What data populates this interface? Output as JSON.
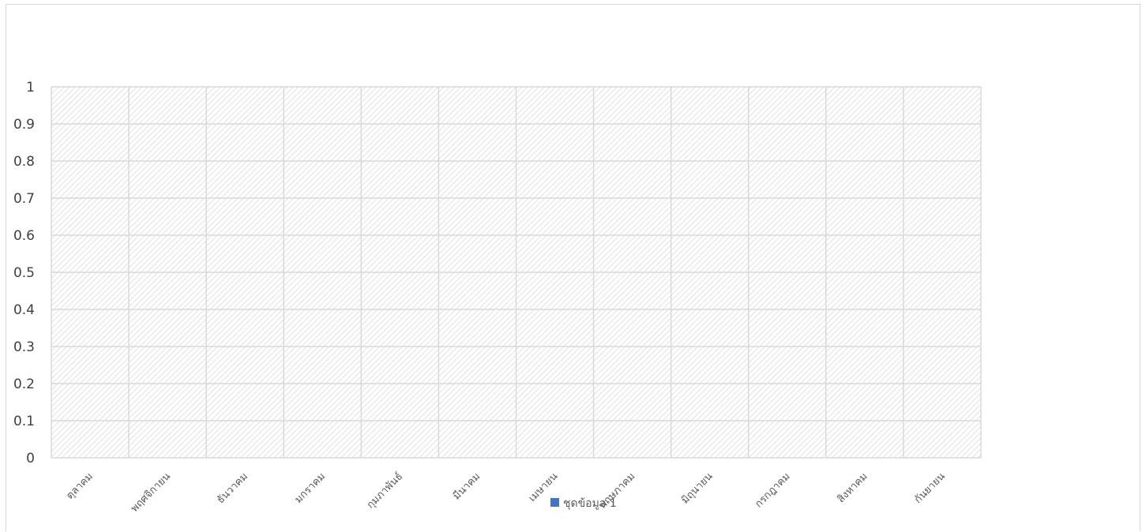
{
  "chart_data": {
    "type": "bar",
    "categories": [
      "ตุลาคม",
      "พฤศจิกายน",
      "ธันวาคม",
      "มกราคม",
      "กุมภาพันธ์",
      "มีนาคม",
      "เมษายน",
      "พฤษภาคม",
      "มิถุนายน",
      "กรกฎาคม",
      "สิงหาคม",
      "กันยายน"
    ],
    "series": [
      {
        "name": "ชุดข้อมูล 1",
        "values": [
          null,
          null,
          null,
          null,
          null,
          null,
          null,
          null,
          null,
          null,
          null,
          null
        ],
        "color": "#4472c4"
      }
    ],
    "ylim": [
      0,
      1
    ],
    "yticks": [
      "0",
      "0.1",
      "0.2",
      "0.3",
      "0.4",
      "0.5",
      "0.6",
      "0.7",
      "0.8",
      "0.9",
      "1"
    ],
    "grid": true,
    "plot_area_fill": "hatched light gray",
    "legend_position": "bottom",
    "colors": {
      "gridline": "#d9d9d9",
      "hatch": "#d9d9d9",
      "axis_text": "#404040",
      "category_text": "#595959"
    }
  }
}
